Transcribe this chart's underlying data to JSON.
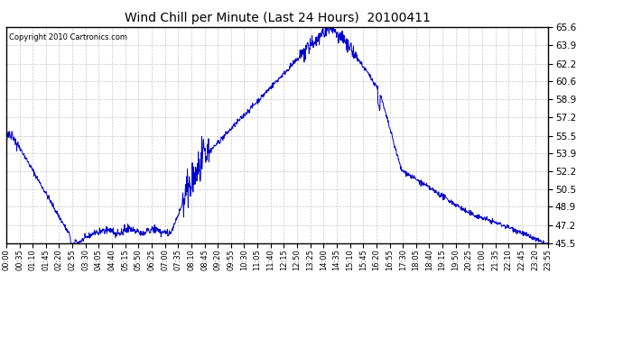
{
  "title": "Wind Chill per Minute (Last 24 Hours)  20100411",
  "copyright": "Copyright 2010 Cartronics.com",
  "line_color": "#0000CC",
  "bg_color": "#ffffff",
  "grid_color": "#c8c8c8",
  "yticks": [
    45.5,
    47.2,
    48.9,
    50.5,
    52.2,
    53.9,
    55.5,
    57.2,
    58.9,
    60.6,
    62.2,
    63.9,
    65.6
  ],
  "ymin": 45.5,
  "ymax": 65.6,
  "xtick_labels": [
    "00:00",
    "00:35",
    "01:10",
    "01:45",
    "02:20",
    "02:55",
    "03:30",
    "04:05",
    "04:40",
    "05:15",
    "05:50",
    "06:25",
    "07:00",
    "07:35",
    "08:10",
    "08:45",
    "09:20",
    "09:55",
    "10:30",
    "11:05",
    "11:40",
    "12:15",
    "12:50",
    "13:25",
    "14:00",
    "14:35",
    "15:10",
    "15:45",
    "16:20",
    "16:55",
    "17:30",
    "18:05",
    "18:40",
    "19:15",
    "19:50",
    "20:25",
    "21:00",
    "21:35",
    "22:10",
    "22:45",
    "23:20",
    "23:55"
  ]
}
